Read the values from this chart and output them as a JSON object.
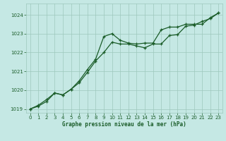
{
  "title": "Graphe pression niveau de la mer (hPa)",
  "bg_color": "#c5e8e4",
  "grid_color": "#9dc8bc",
  "line_color": "#1a5c28",
  "xlim": [
    -0.5,
    23.5
  ],
  "ylim": [
    1018.8,
    1024.6
  ],
  "yticks": [
    1019,
    1020,
    1021,
    1022,
    1023,
    1024
  ],
  "xticks": [
    0,
    1,
    2,
    3,
    4,
    5,
    6,
    7,
    8,
    9,
    10,
    11,
    12,
    13,
    14,
    15,
    16,
    17,
    18,
    19,
    20,
    21,
    22,
    23
  ],
  "series1_x": [
    0,
    1,
    2,
    3,
    4,
    5,
    6,
    7,
    8,
    9,
    10,
    11,
    12,
    13,
    14,
    15,
    16,
    17,
    18,
    19,
    20,
    21,
    22,
    23
  ],
  "series1_y": [
    1019.0,
    1019.15,
    1019.4,
    1019.85,
    1019.75,
    1020.05,
    1020.4,
    1020.95,
    1021.55,
    1022.0,
    1022.55,
    1022.45,
    1022.45,
    1022.35,
    1022.25,
    1022.45,
    1022.45,
    1022.9,
    1022.95,
    1023.4,
    1023.45,
    1023.65,
    1023.8,
    1024.1
  ],
  "series2_x": [
    0,
    1,
    2,
    3,
    4,
    5,
    6,
    7,
    8,
    9,
    10,
    11,
    12,
    13,
    14,
    15,
    16,
    17,
    18,
    19,
    20,
    21,
    22,
    23
  ],
  "series2_y": [
    1019.0,
    1019.2,
    1019.5,
    1019.85,
    1019.75,
    1020.05,
    1020.5,
    1021.1,
    1021.65,
    1022.85,
    1023.0,
    1022.65,
    1022.5,
    1022.45,
    1022.5,
    1022.5,
    1023.2,
    1023.35,
    1023.35,
    1023.5,
    1023.5,
    1023.5,
    1023.85,
    1024.1
  ]
}
